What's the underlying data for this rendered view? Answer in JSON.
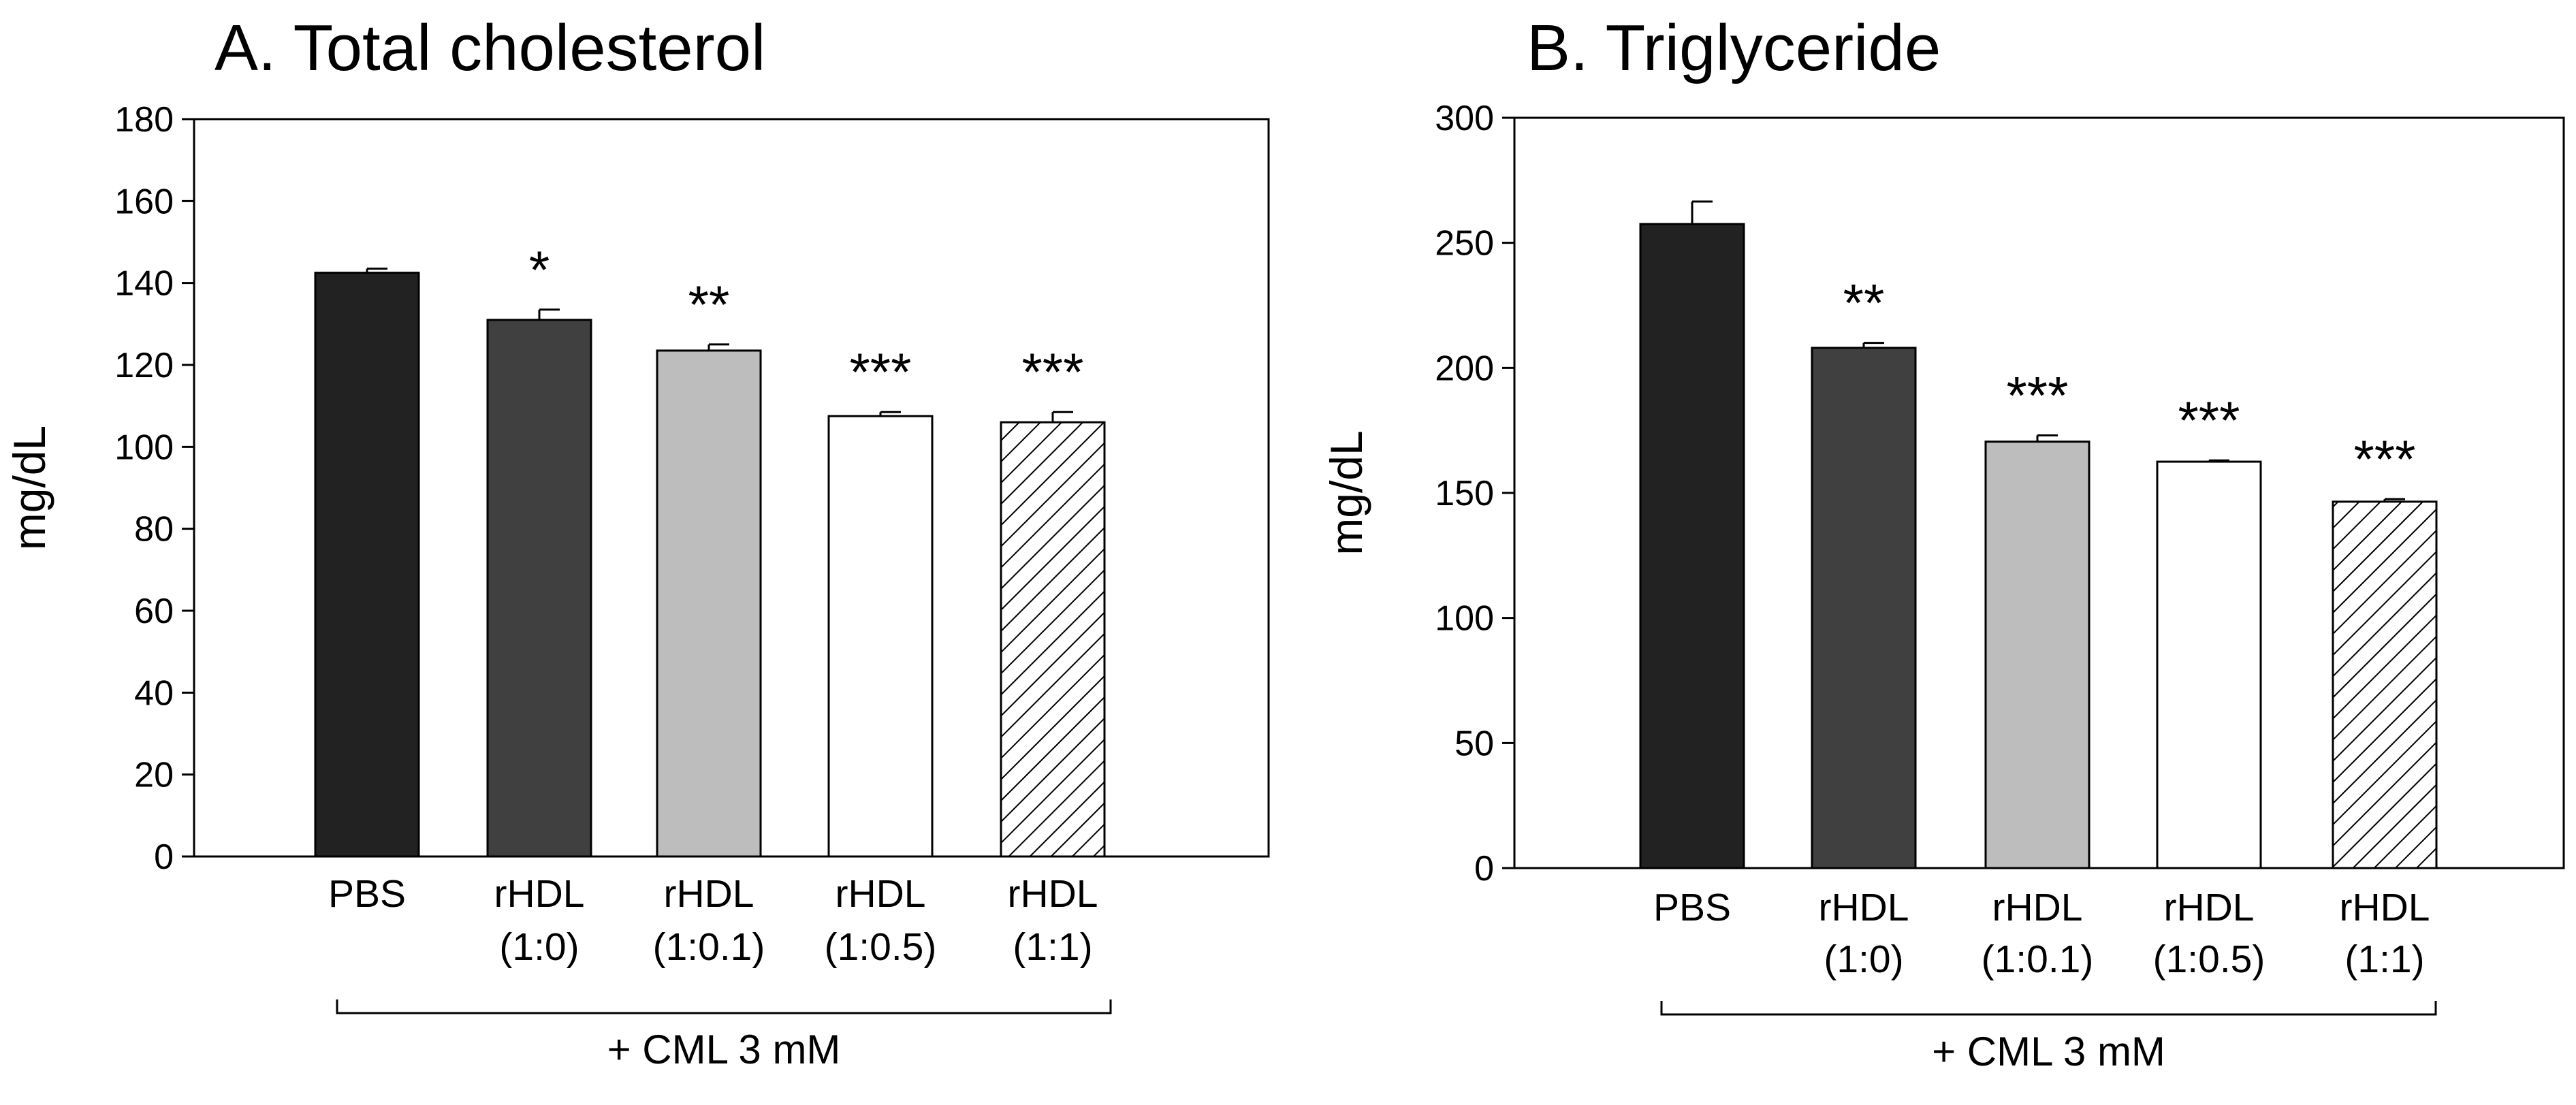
{
  "colors": {
    "pbs": "#222222",
    "rhdl_1_0": "#404040",
    "rhdl_1_0_1": "#bdbdbd",
    "rhdl_1_0_5": "#ffffff",
    "rhdl_1_1_hatch": "#000000",
    "axis": "#000000"
  },
  "chart_data": [
    {
      "type": "bar",
      "title": "A. Total cholesterol",
      "ylabel": "mg/dL",
      "xlabel": "",
      "ylim": [
        0,
        180
      ],
      "yticks": [
        0,
        20,
        40,
        60,
        80,
        100,
        120,
        140,
        160,
        180
      ],
      "categories": [
        {
          "line1": "PBS",
          "line2": ""
        },
        {
          "line1": "rHDL",
          "line2": "(1:0)"
        },
        {
          "line1": "rHDL",
          "line2": "(1:0.1)"
        },
        {
          "line1": "rHDL",
          "line2": "(1:0.5)"
        },
        {
          "line1": "rHDL",
          "line2": "(1:1)"
        }
      ],
      "values": [
        142.5,
        131,
        123.5,
        107.5,
        106
      ],
      "errors": [
        1,
        2.5,
        1.5,
        1,
        2.5
      ],
      "significance": [
        "",
        "*",
        "**",
        "***",
        "***"
      ],
      "fills": [
        "pbs",
        "rhdl_1_0",
        "rhdl_1_0_1",
        "rhdl_1_0_5",
        "hatch"
      ],
      "bracket_label": "+ CML 3 mM",
      "grid": false
    },
    {
      "type": "bar",
      "title": "B. Triglyceride",
      "ylabel": "mg/dL",
      "xlabel": "",
      "ylim": [
        0,
        300
      ],
      "yticks": [
        0,
        50,
        100,
        150,
        200,
        250,
        300
      ],
      "categories": [
        {
          "line1": "PBS",
          "line2": ""
        },
        {
          "line1": "rHDL",
          "line2": "(1:0)"
        },
        {
          "line1": "rHDL",
          "line2": "(1:0.1)"
        },
        {
          "line1": "rHDL",
          "line2": "(1:0.5)"
        },
        {
          "line1": "rHDL",
          "line2": "(1:1)"
        }
      ],
      "values": [
        257.5,
        208,
        170.5,
        162.5,
        146.5
      ],
      "errors": [
        9,
        2,
        2.5,
        0.5,
        1
      ],
      "significance": [
        "",
        "**",
        "***",
        "***",
        "***"
      ],
      "fills": [
        "pbs",
        "rhdl_1_0",
        "rhdl_1_0_1",
        "rhdl_1_0_5",
        "hatch"
      ],
      "bracket_label": "+ CML 3 mM",
      "grid": false
    }
  ]
}
